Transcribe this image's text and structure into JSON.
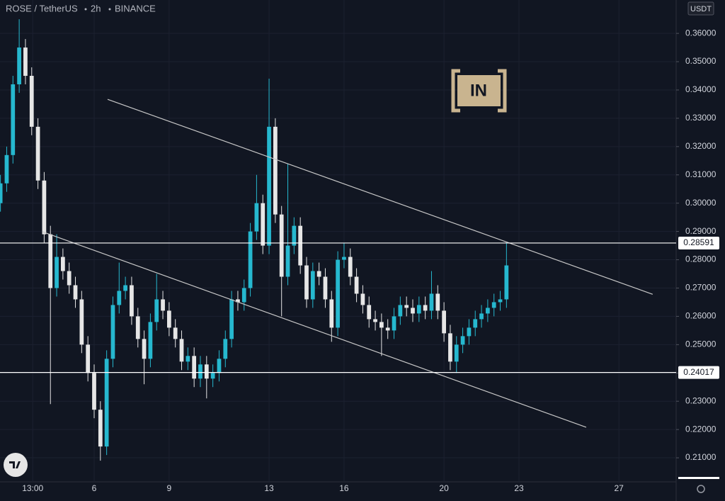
{
  "chart_data": {
    "type": "candlestick",
    "symbol": "ROSE / TetherUS",
    "interval": "2h",
    "exchange": "BINANCE",
    "currency": "USDT",
    "logo_text": "IN",
    "up_color": "#26b8cf",
    "down_color": "#e6e6e6",
    "xlim": [
      2.232,
      29.29
    ],
    "xticks": [
      {
        "value": 3.5417,
        "label": "13:00"
      },
      6,
      9,
      13,
      16,
      20,
      23,
      27
    ],
    "ylim": [
      0.2015,
      0.3718
    ],
    "yticks": [
      {
        "value": 0.21,
        "label": "0.21000"
      },
      {
        "value": 0.22,
        "label": "0.22000"
      },
      {
        "value": 0.23,
        "label": "0.23000"
      },
      {
        "value": 0.24,
        "label": "0.24000"
      },
      {
        "value": 0.25,
        "label": "0.25000"
      },
      {
        "value": 0.26,
        "label": "0.26000"
      },
      {
        "value": 0.27,
        "label": "0.27000"
      },
      {
        "value": 0.28,
        "label": "0.28000"
      },
      {
        "value": 0.29,
        "label": "0.29000"
      },
      {
        "value": 0.3,
        "label": "0.30000"
      },
      {
        "value": 0.31,
        "label": "0.31000"
      },
      {
        "value": 0.32,
        "label": "0.32000"
      },
      {
        "value": 0.33,
        "label": "0.33000"
      },
      {
        "value": 0.34,
        "label": "0.34000"
      },
      {
        "value": 0.35,
        "label": "0.35000"
      },
      {
        "value": 0.36,
        "label": "0.36000"
      }
    ],
    "levels": [
      0.28591,
      0.24017
    ],
    "trendlines": [
      {
        "x": [
          6.538,
          28.35
        ],
        "y": [
          0.3367,
          0.2678
        ]
      },
      {
        "x": [
          3.932,
          25.69
        ],
        "y": [
          0.2899,
          0.2208
        ]
      }
    ],
    "x": [
      2.25,
      2.5,
      2.75,
      3,
      3.25,
      3.5,
      3.75,
      4,
      4.25,
      4.5,
      4.75,
      5,
      5.25,
      5.5,
      5.75,
      6,
      6.25,
      6.5,
      6.75,
      7,
      7.25,
      7.5,
      7.75,
      8,
      8.25,
      8.5,
      8.75,
      9,
      9.25,
      9.5,
      9.75,
      10,
      10.25,
      10.5,
      10.75,
      11,
      11.25,
      11.5,
      11.75,
      12,
      12.25,
      12.5,
      12.75,
      13,
      13.25,
      13.5,
      13.75,
      14,
      14.25,
      14.5,
      14.75,
      15,
      15.25,
      15.5,
      15.75,
      16,
      16.25,
      16.5,
      16.75,
      17,
      17.25,
      17.5,
      17.75,
      18,
      18.25,
      18.5,
      18.75,
      19,
      19.25,
      19.5,
      19.75,
      20,
      20.25,
      20.5,
      20.75,
      21,
      21.25,
      21.5,
      21.75,
      22,
      22.25,
      22.5
    ],
    "open": [
      0.3,
      0.307,
      0.317,
      0.342,
      0.355,
      0.345,
      0.327,
      0.308,
      0.289,
      0.27,
      0.281,
      0.276,
      0.271,
      0.266,
      0.25,
      0.24,
      0.227,
      0.214,
      0.245,
      0.264,
      0.269,
      0.271,
      0.26,
      0.252,
      0.245,
      0.258,
      0.266,
      0.262,
      0.256,
      0.252,
      0.244,
      0.246,
      0.238,
      0.243,
      0.238,
      0.24,
      0.245,
      0.252,
      0.266,
      0.265,
      0.27,
      0.29,
      0.3,
      0.285,
      0.327,
      0.296,
      0.274,
      0.285,
      0.292,
      0.278,
      0.266,
      0.276,
      0.274,
      0.266,
      0.256,
      0.28,
      0.281,
      0.274,
      0.268,
      0.264,
      0.259,
      0.258,
      0.256,
      0.255,
      0.26,
      0.264,
      0.263,
      0.261,
      0.264,
      0.262,
      0.268,
      0.262,
      0.254,
      0.244,
      0.25,
      0.253,
      0.256,
      0.259,
      0.261,
      0.263,
      0.265,
      0.266
    ],
    "high": [
      0.31,
      0.32,
      0.345,
      0.365,
      0.358,
      0.348,
      0.33,
      0.311,
      0.292,
      0.289,
      0.284,
      0.279,
      0.274,
      0.269,
      0.253,
      0.243,
      0.23,
      0.248,
      0.267,
      0.279,
      0.274,
      0.274,
      0.263,
      0.255,
      0.261,
      0.275,
      0.269,
      0.265,
      0.259,
      0.255,
      0.249,
      0.249,
      0.246,
      0.246,
      0.243,
      0.248,
      0.255,
      0.269,
      0.269,
      0.273,
      0.293,
      0.31,
      0.303,
      0.344,
      0.33,
      0.299,
      0.314,
      0.295,
      0.295,
      0.281,
      0.279,
      0.279,
      0.277,
      0.269,
      0.283,
      0.286,
      0.284,
      0.277,
      0.271,
      0.267,
      0.262,
      0.261,
      0.259,
      0.263,
      0.267,
      0.267,
      0.266,
      0.267,
      0.267,
      0.276,
      0.271,
      0.265,
      0.257,
      0.253,
      0.256,
      0.259,
      0.262,
      0.264,
      0.266,
      0.268,
      0.269,
      0.286
    ],
    "low": [
      0.297,
      0.304,
      0.314,
      0.339,
      0.342,
      0.324,
      0.305,
      0.286,
      0.229,
      0.267,
      0.273,
      0.268,
      0.263,
      0.247,
      0.237,
      0.224,
      0.209,
      0.211,
      0.242,
      0.261,
      0.266,
      0.257,
      0.249,
      0.236,
      0.242,
      0.255,
      0.259,
      0.253,
      0.249,
      0.241,
      0.241,
      0.235,
      0.235,
      0.231,
      0.235,
      0.237,
      0.242,
      0.249,
      0.262,
      0.262,
      0.267,
      0.287,
      0.282,
      0.282,
      0.293,
      0.26,
      0.271,
      0.282,
      0.275,
      0.263,
      0.263,
      0.271,
      0.263,
      0.251,
      0.253,
      0.277,
      0.271,
      0.265,
      0.261,
      0.256,
      0.255,
      0.246,
      0.252,
      0.252,
      0.257,
      0.26,
      0.258,
      0.258,
      0.259,
      0.259,
      0.259,
      0.251,
      0.241,
      0.24,
      0.247,
      0.25,
      0.253,
      0.256,
      0.258,
      0.26,
      0.262,
      0.263
    ],
    "close": [
      0.307,
      0.317,
      0.342,
      0.355,
      0.345,
      0.327,
      0.308,
      0.289,
      0.27,
      0.281,
      0.276,
      0.271,
      0.266,
      0.25,
      0.24,
      0.227,
      0.214,
      0.245,
      0.264,
      0.269,
      0.271,
      0.26,
      0.252,
      0.245,
      0.258,
      0.266,
      0.262,
      0.256,
      0.252,
      0.244,
      0.246,
      0.238,
      0.243,
      0.238,
      0.24,
      0.245,
      0.252,
      0.266,
      0.265,
      0.27,
      0.29,
      0.3,
      0.285,
      0.327,
      0.296,
      0.274,
      0.285,
      0.292,
      0.278,
      0.266,
      0.276,
      0.274,
      0.266,
      0.256,
      0.28,
      0.281,
      0.274,
      0.268,
      0.264,
      0.259,
      0.258,
      0.256,
      0.255,
      0.26,
      0.264,
      0.263,
      0.261,
      0.264,
      0.262,
      0.268,
      0.262,
      0.254,
      0.244,
      0.25,
      0.253,
      0.256,
      0.259,
      0.261,
      0.263,
      0.265,
      0.266,
      0.278
    ]
  }
}
